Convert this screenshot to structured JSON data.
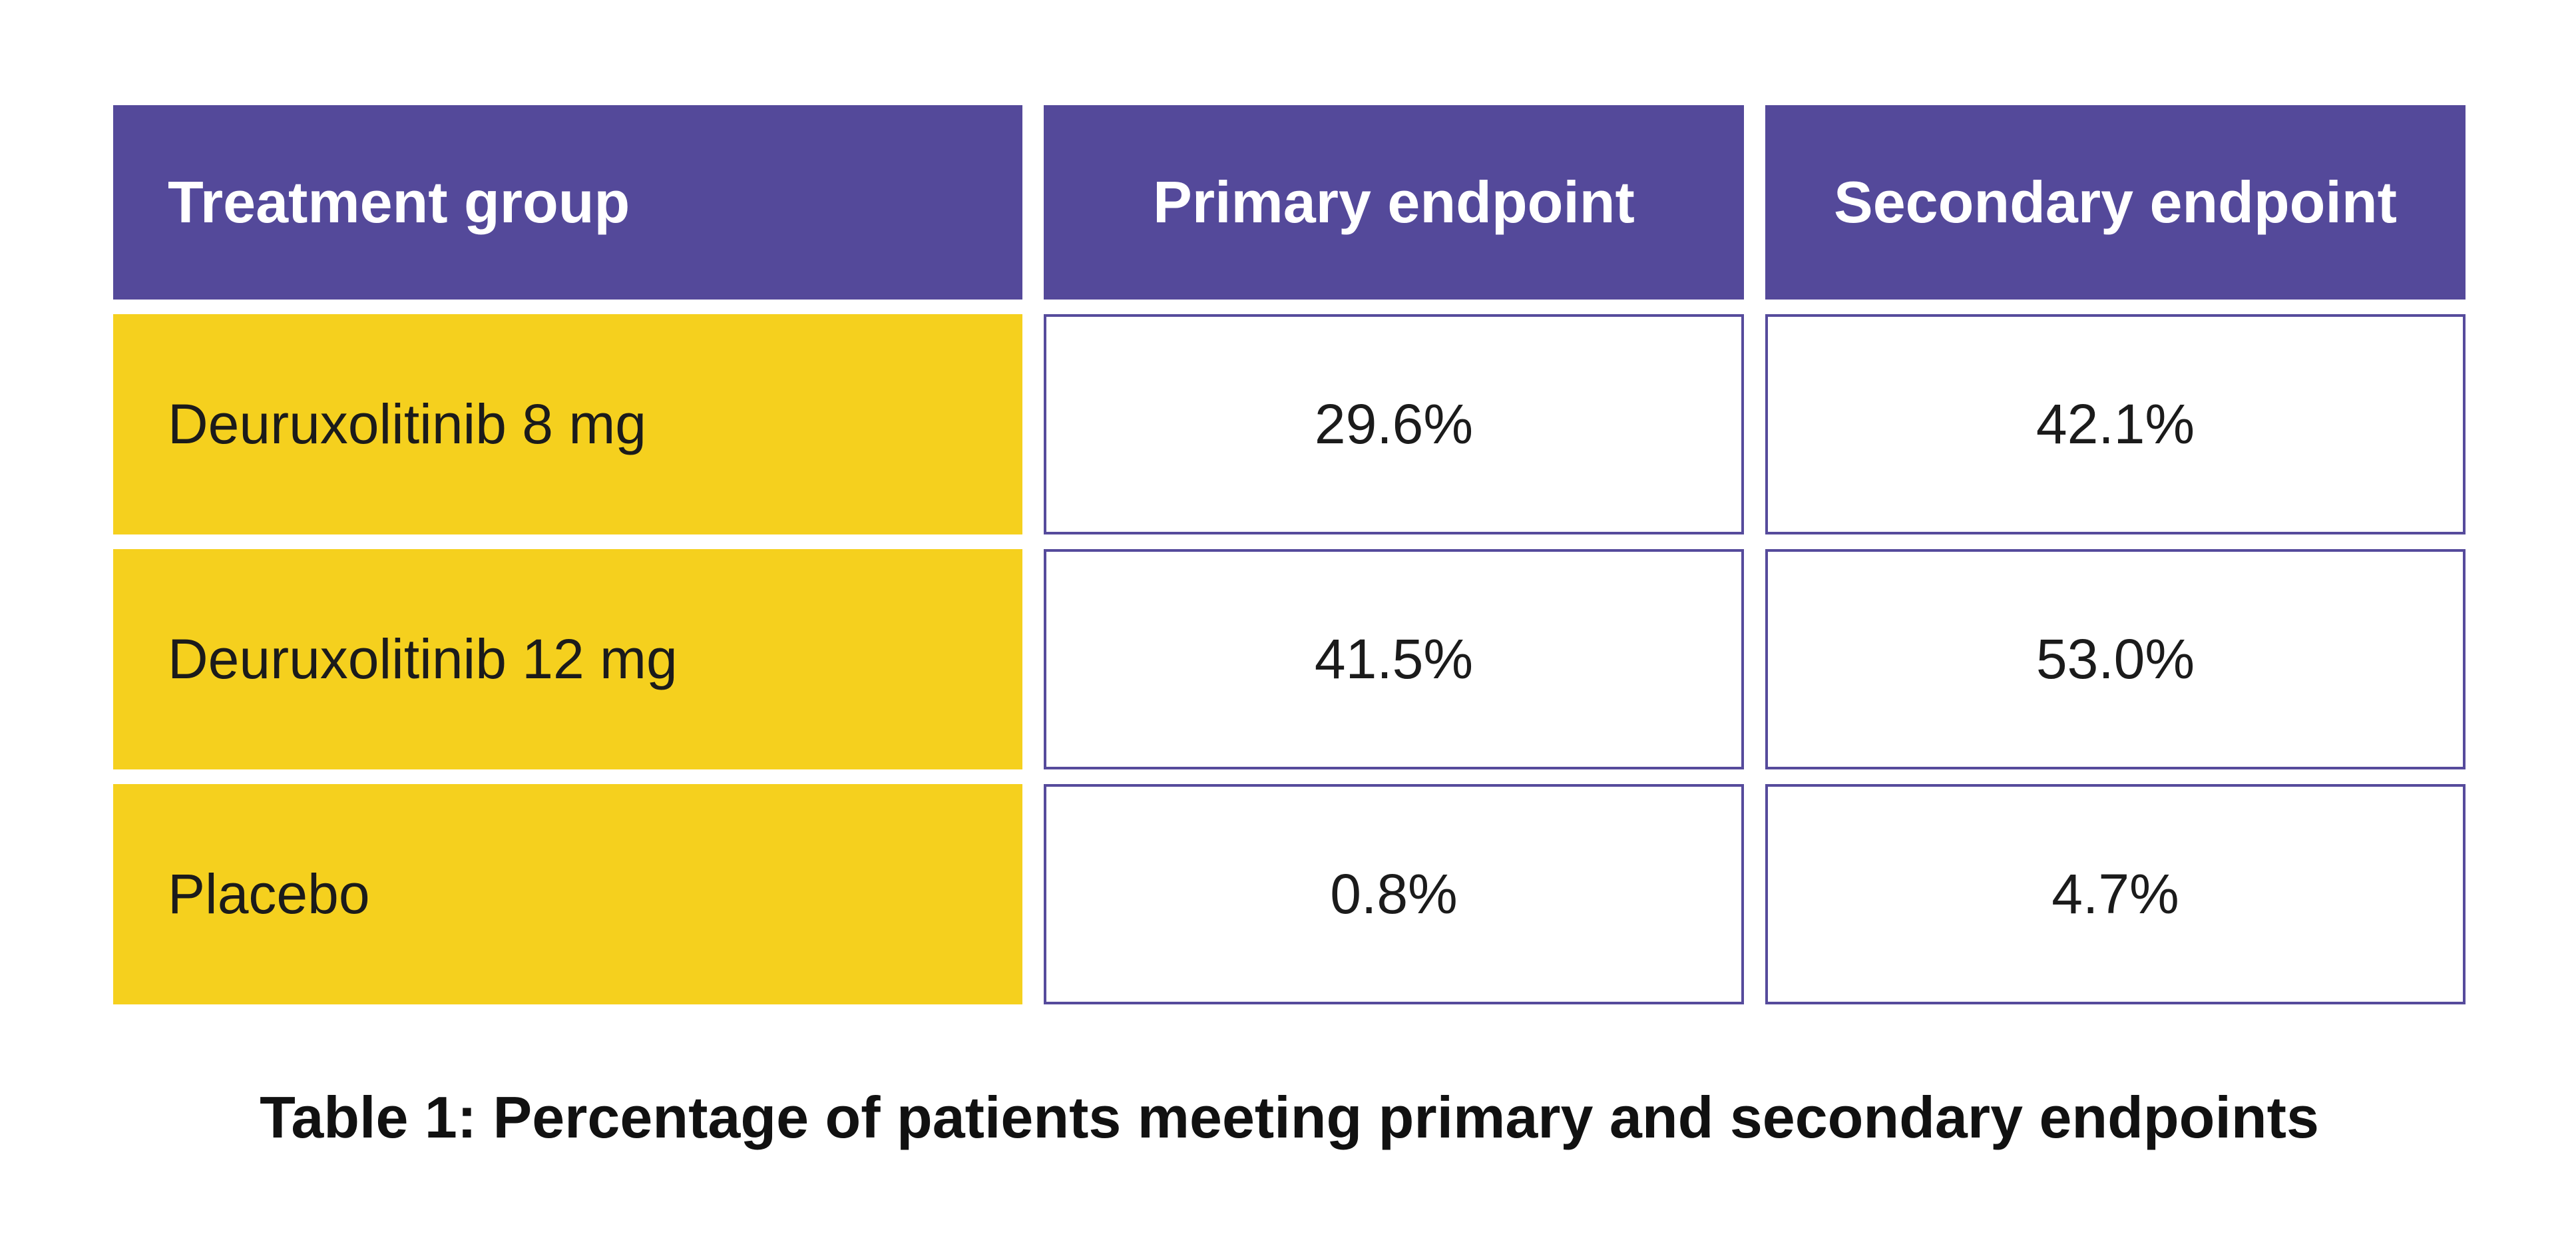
{
  "colors": {
    "page_bg": "#FFFFFF",
    "header_bg": "#54499A",
    "header_text": "#FFFFFF",
    "group_cell_bg": "#F5D01E",
    "value_cell_bg": "#FFFFFF",
    "value_cell_border": "#564B9C",
    "text": "#1B1B1B"
  },
  "chart_data": {
    "type": "table",
    "title": "Table 1: Percentage of patients meeting primary and secondary endpoints",
    "columns": [
      "Treatment group",
      "Primary endpoint",
      "Secondary endpoint"
    ],
    "rows": [
      [
        "Deuruxolitinib 8 mg",
        "29.6%",
        "42.1%"
      ],
      [
        "Deuruxolitinib 12 mg",
        "41.5%",
        "53.0%"
      ],
      [
        "Placebo",
        "0.8%",
        "4.7%"
      ]
    ],
    "values_numeric": {
      "categories": [
        "Deuruxolitinib 8 mg",
        "Deuruxolitinib 12 mg",
        "Placebo"
      ],
      "series": [
        {
          "name": "Primary endpoint",
          "values": [
            29.6,
            41.5,
            0.8
          ]
        },
        {
          "name": "Secondary endpoint",
          "values": [
            42.1,
            53.0,
            4.7
          ]
        }
      ],
      "unit": "%"
    }
  }
}
